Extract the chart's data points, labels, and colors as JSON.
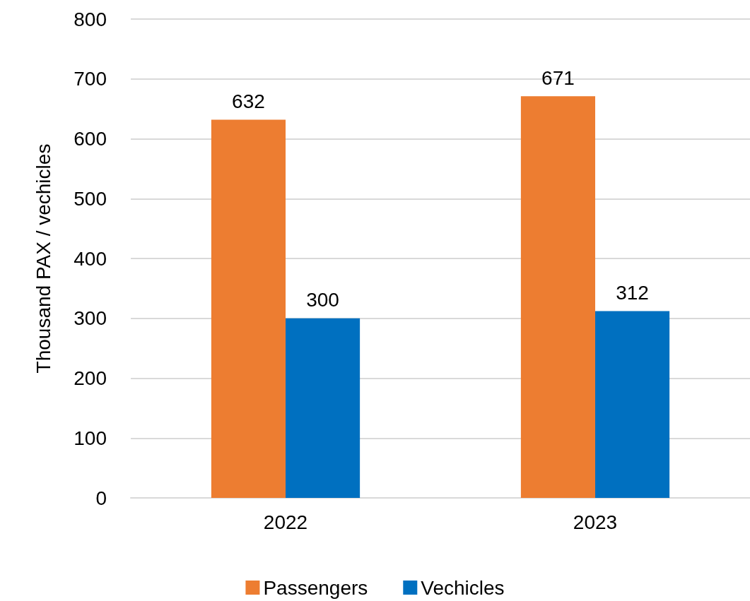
{
  "chart_data": {
    "type": "bar",
    "ylabel": "Thousand PAX / vechicles",
    "categories": [
      "2022",
      "2023"
    ],
    "series": [
      {
        "name": "Passengers",
        "color": "#ed7d31",
        "values": [
          632,
          671
        ]
      },
      {
        "name": "Vechicles",
        "color": "#0070c0",
        "values": [
          300,
          312
        ]
      }
    ],
    "ylim": [
      0,
      800
    ],
    "yticks": [
      0,
      100,
      200,
      300,
      400,
      500,
      600,
      700,
      800
    ],
    "grid": "y",
    "legend": "bottom",
    "data_labels": true
  }
}
